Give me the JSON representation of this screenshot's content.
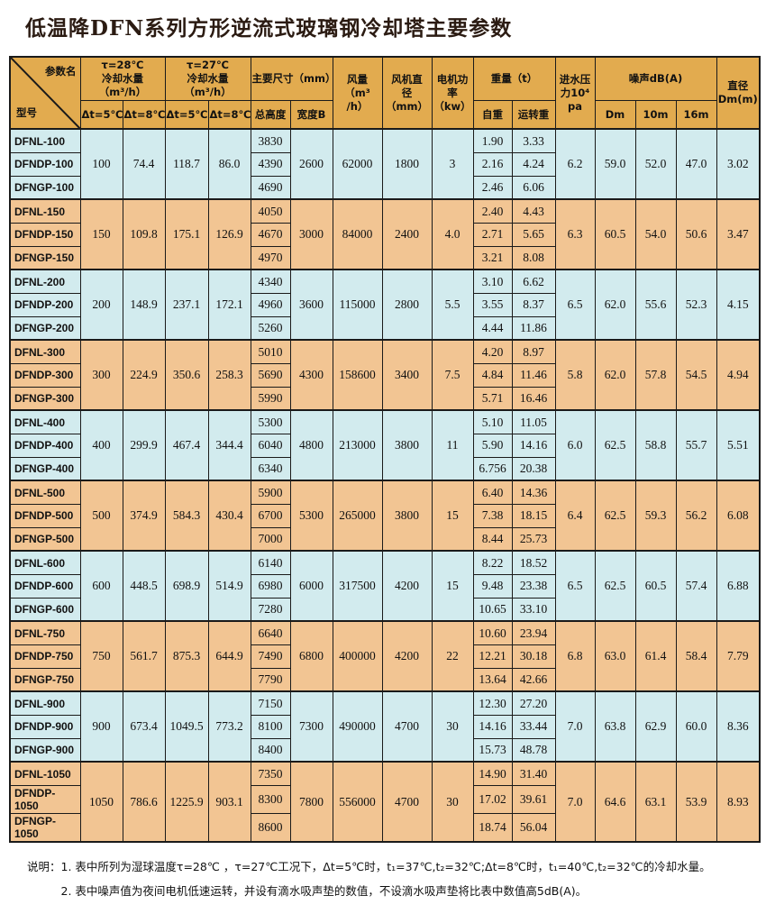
{
  "title": "低温降DFN系列方形逆流式玻璃钢冷却塔主要参数",
  "colors": {
    "header_bg": "#e2ab4f",
    "row_blue": "#d2ebee",
    "row_orange": "#f2c593",
    "border": "#1a1a1a",
    "title": "#2b1b12"
  },
  "table": {
    "header": {
      "param_label": "参数名",
      "model_label": "型号",
      "water28": "τ=28℃\n冷却水量（m³/h）",
      "water27": "τ=27℃\n冷却水量（m³/h）",
      "dt5": "Δt=5℃",
      "dt8": "Δt=8℃",
      "dims": "主要尺寸（mm）",
      "height": "总高度",
      "width_b": "宽度B",
      "airflow": "风量\n（m³\n/h）",
      "fan_dia": "风机直\n径\n（mm）",
      "motor": "电机功\n率（kw）",
      "weight": "重量（t）",
      "self_weight": "自重",
      "run_weight": "运转重",
      "pressure": "进水压\n力10⁴\npa",
      "noise": "噪声dB(A)",
      "noise_dm": "Dm",
      "noise_10m": "10m",
      "noise_16m": "16m",
      "diameter": "直径\nDm(m)"
    },
    "groups": [
      {
        "tone": "blue",
        "models": [
          "DFNL-100",
          "DFNDP-100",
          "DFNGP-100"
        ],
        "w28d5": "100",
        "w28d8": "74.4",
        "w27d5": "118.7",
        "w27d8": "86.0",
        "heights": [
          "3830",
          "4390",
          "4690"
        ],
        "width_b": "2600",
        "airflow": "62000",
        "fan_dia": "1800",
        "motor": "3",
        "self_weights": [
          "1.90",
          "2.16",
          "2.46"
        ],
        "run_weights": [
          "3.33",
          "4.24",
          "6.06"
        ],
        "pressure": "6.2",
        "noise_dm": "59.0",
        "noise_10m": "52.0",
        "noise_16m": "47.0",
        "diameter": "3.02"
      },
      {
        "tone": "orange",
        "models": [
          "DFNL-150",
          "DFNDP-150",
          "DFNGP-150"
        ],
        "w28d5": "150",
        "w28d8": "109.8",
        "w27d5": "175.1",
        "w27d8": "126.9",
        "heights": [
          "4050",
          "4670",
          "4970"
        ],
        "width_b": "3000",
        "airflow": "84000",
        "fan_dia": "2400",
        "motor": "4.0",
        "self_weights": [
          "2.40",
          "2.71",
          "3.21"
        ],
        "run_weights": [
          "4.43",
          "5.65",
          "8.08"
        ],
        "pressure": "6.3",
        "noise_dm": "60.5",
        "noise_10m": "54.0",
        "noise_16m": "50.6",
        "diameter": "3.47"
      },
      {
        "tone": "blue",
        "models": [
          "DFNL-200",
          "DFNDP-200",
          "DFNGP-200"
        ],
        "w28d5": "200",
        "w28d8": "148.9",
        "w27d5": "237.1",
        "w27d8": "172.1",
        "heights": [
          "4340",
          "4960",
          "5260"
        ],
        "width_b": "3600",
        "airflow": "115000",
        "fan_dia": "2800",
        "motor": "5.5",
        "self_weights": [
          "3.10",
          "3.55",
          "4.44"
        ],
        "run_weights": [
          "6.62",
          "8.37",
          "11.86"
        ],
        "pressure": "6.5",
        "noise_dm": "62.0",
        "noise_10m": "55.6",
        "noise_16m": "52.3",
        "diameter": "4.15"
      },
      {
        "tone": "orange",
        "models": [
          "DFNL-300",
          "DFNDP-300",
          "DFNGP-300"
        ],
        "w28d5": "300",
        "w28d8": "224.9",
        "w27d5": "350.6",
        "w27d8": "258.3",
        "heights": [
          "5010",
          "5690",
          "5990"
        ],
        "width_b": "4300",
        "airflow": "158600",
        "fan_dia": "3400",
        "motor": "7.5",
        "self_weights": [
          "4.20",
          "4.84",
          "5.71"
        ],
        "run_weights": [
          "8.97",
          "11.46",
          "16.46"
        ],
        "pressure": "5.8",
        "noise_dm": "62.0",
        "noise_10m": "57.8",
        "noise_16m": "54.5",
        "diameter": "4.94"
      },
      {
        "tone": "blue",
        "models": [
          "DFNL-400",
          "DFNDP-400",
          "DFNGP-400"
        ],
        "w28d5": "400",
        "w28d8": "299.9",
        "w27d5": "467.4",
        "w27d8": "344.4",
        "heights": [
          "5300",
          "6040",
          "6340"
        ],
        "width_b": "4800",
        "airflow": "213000",
        "fan_dia": "3800",
        "motor": "11",
        "self_weights": [
          "5.10",
          "5.90",
          "6.756"
        ],
        "run_weights": [
          "11.05",
          "14.16",
          "20.38"
        ],
        "pressure": "6.0",
        "noise_dm": "62.5",
        "noise_10m": "58.8",
        "noise_16m": "55.7",
        "diameter": "5.51"
      },
      {
        "tone": "orange",
        "models": [
          "DFNL-500",
          "DFNDP-500",
          "DFNGP-500"
        ],
        "w28d5": "500",
        "w28d8": "374.9",
        "w27d5": "584.3",
        "w27d8": "430.4",
        "heights": [
          "5900",
          "6700",
          "7000"
        ],
        "width_b": "5300",
        "airflow": "265000",
        "fan_dia": "3800",
        "motor": "15",
        "self_weights": [
          "6.40",
          "7.38",
          "8.44"
        ],
        "run_weights": [
          "14.36",
          "18.15",
          "25.73"
        ],
        "pressure": "6.4",
        "noise_dm": "62.5",
        "noise_10m": "59.3",
        "noise_16m": "56.2",
        "diameter": "6.08"
      },
      {
        "tone": "blue",
        "models": [
          "DFNL-600",
          "DFNDP-600",
          "DFNGP-600"
        ],
        "w28d5": "600",
        "w28d8": "448.5",
        "w27d5": "698.9",
        "w27d8": "514.9",
        "heights": [
          "6140",
          "6980",
          "7280"
        ],
        "width_b": "6000",
        "airflow": "317500",
        "fan_dia": "4200",
        "motor": "15",
        "self_weights": [
          "8.22",
          "9.48",
          "10.65"
        ],
        "run_weights": [
          "18.52",
          "23.38",
          "33.10"
        ],
        "pressure": "6.5",
        "noise_dm": "62.5",
        "noise_10m": "60.5",
        "noise_16m": "57.4",
        "diameter": "6.88"
      },
      {
        "tone": "orange",
        "models": [
          "DFNL-750",
          "DFNDP-750",
          "DFNGP-750"
        ],
        "w28d5": "750",
        "w28d8": "561.7",
        "w27d5": "875.3",
        "w27d8": "644.9",
        "heights": [
          "6640",
          "7490",
          "7790"
        ],
        "width_b": "6800",
        "airflow": "400000",
        "fan_dia": "4200",
        "motor": "22",
        "self_weights": [
          "10.60",
          "12.21",
          "13.64"
        ],
        "run_weights": [
          "23.94",
          "30.18",
          "42.66"
        ],
        "pressure": "6.8",
        "noise_dm": "63.0",
        "noise_10m": "61.4",
        "noise_16m": "58.4",
        "diameter": "7.79"
      },
      {
        "tone": "blue",
        "models": [
          "DFNL-900",
          "DFNDP-900",
          "DFNGP-900"
        ],
        "w28d5": "900",
        "w28d8": "673.4",
        "w27d5": "1049.5",
        "w27d8": "773.2",
        "heights": [
          "7150",
          "8100",
          "8400"
        ],
        "width_b": "7300",
        "airflow": "490000",
        "fan_dia": "4700",
        "motor": "30",
        "self_weights": [
          "12.30",
          "14.16",
          "15.73"
        ],
        "run_weights": [
          "27.20",
          "33.44",
          "48.78"
        ],
        "pressure": "7.0",
        "noise_dm": "63.8",
        "noise_10m": "62.9",
        "noise_16m": "60.0",
        "diameter": "8.36"
      },
      {
        "tone": "orange",
        "models": [
          "DFNL-1050",
          "DFNDP-1050",
          "DFNGP-1050"
        ],
        "w28d5": "1050",
        "w28d8": "786.6",
        "w27d5": "1225.9",
        "w27d8": "903.1",
        "heights": [
          "7350",
          "8300",
          "8600"
        ],
        "width_b": "7800",
        "airflow": "556000",
        "fan_dia": "4700",
        "motor": "30",
        "self_weights": [
          "14.90",
          "17.02",
          "18.74"
        ],
        "run_weights": [
          "31.40",
          "39.61",
          "56.04"
        ],
        "pressure": "7.0",
        "noise_dm": "64.6",
        "noise_10m": "63.1",
        "noise_16m": "53.9",
        "diameter": "8.93"
      }
    ]
  },
  "notes": {
    "prefix": "说明：",
    "lines": [
      "1. 表中所列为湿球温度τ=28℃ ，τ=27℃工况下，Δt=5℃时，t₁=37℃,t₂=32℃;Δt=8℃时，t₁=40℃,t₂=32℃的冷却水量。",
      "2. 表中噪声值为夜间电机低速运转，并设有滴水吸声垫的数值，不设滴水吸声垫将比表中数值高5dB(A)。"
    ]
  }
}
